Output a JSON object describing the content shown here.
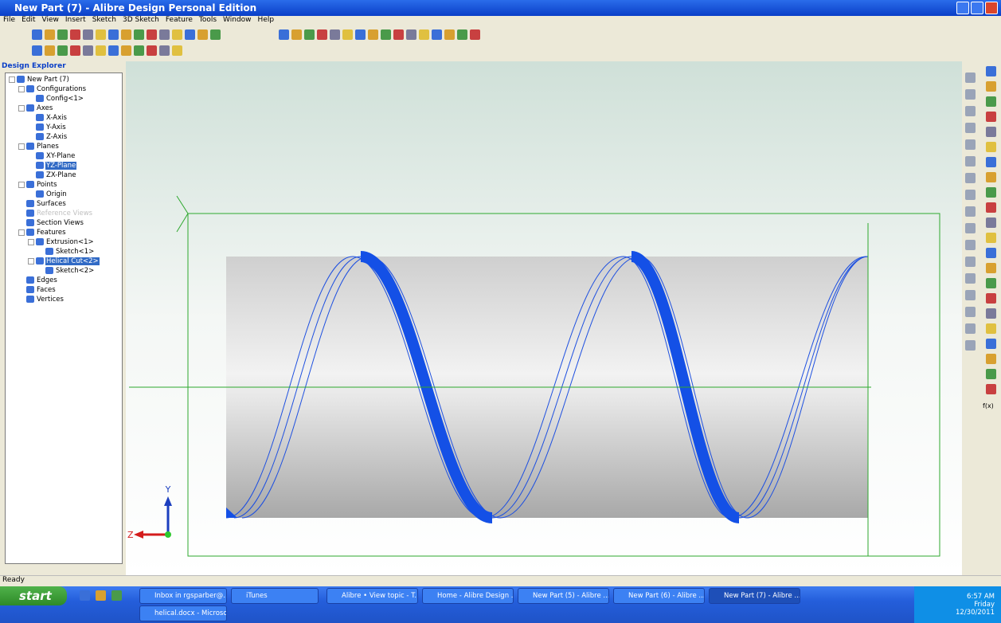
{
  "window": {
    "title": "New Part (7) - Alibre Design Personal Edition"
  },
  "menu": [
    "File",
    "Edit",
    "View",
    "Insert",
    "Sketch",
    "3D Sketch",
    "Feature",
    "Tools",
    "Window",
    "Help"
  ],
  "explorer": {
    "title": "Design Explorer",
    "tree": [
      {
        "label": "New Part (7)",
        "children": [
          {
            "label": "Configurations",
            "children": [
              {
                "label": "Config<1>"
              }
            ]
          },
          {
            "label": "Axes",
            "children": [
              {
                "label": "X-Axis"
              },
              {
                "label": "Y-Axis"
              },
              {
                "label": "Z-Axis"
              }
            ]
          },
          {
            "label": "Planes",
            "children": [
              {
                "label": "XY-Plane"
              },
              {
                "label": "YZ-Plane",
                "selected": true
              },
              {
                "label": "ZX-Plane"
              }
            ]
          },
          {
            "label": "Points",
            "children": [
              {
                "label": "Origin"
              }
            ]
          },
          {
            "label": "Surfaces"
          },
          {
            "label": "Reference Views",
            "disabled": true
          },
          {
            "label": "Section Views"
          },
          {
            "label": "Features",
            "children": [
              {
                "label": "Extrusion<1>",
                "children": [
                  {
                    "label": "Sketch<1>"
                  }
                ]
              },
              {
                "label": "Helical Cut<2>",
                "selected": true,
                "children": [
                  {
                    "label": "Sketch<2>"
                  }
                ]
              }
            ]
          },
          {
            "label": "Edges"
          },
          {
            "label": "Faces"
          },
          {
            "label": "Vertices"
          }
        ]
      }
    ]
  },
  "viewport": {
    "axis_y": "Y",
    "axis_z": "Z"
  },
  "right_toolbar": {
    "function_button": "f(x)"
  },
  "status": "Ready",
  "taskbar": {
    "start": "start",
    "tasks": [
      "Inbox in rgsparber@...",
      "iTunes",
      "Alibre • View topic - T...",
      "Home - Alibre Design ...",
      "New Part (5) - Alibre ...",
      "New Part (6) - Alibre ...",
      "New Part (7) - Alibre ..."
    ],
    "tasks_row2": [
      "helical.docx - Microso..."
    ],
    "clock": {
      "time": "6:57 AM",
      "day": "Friday",
      "date": "12/30/2011"
    }
  }
}
